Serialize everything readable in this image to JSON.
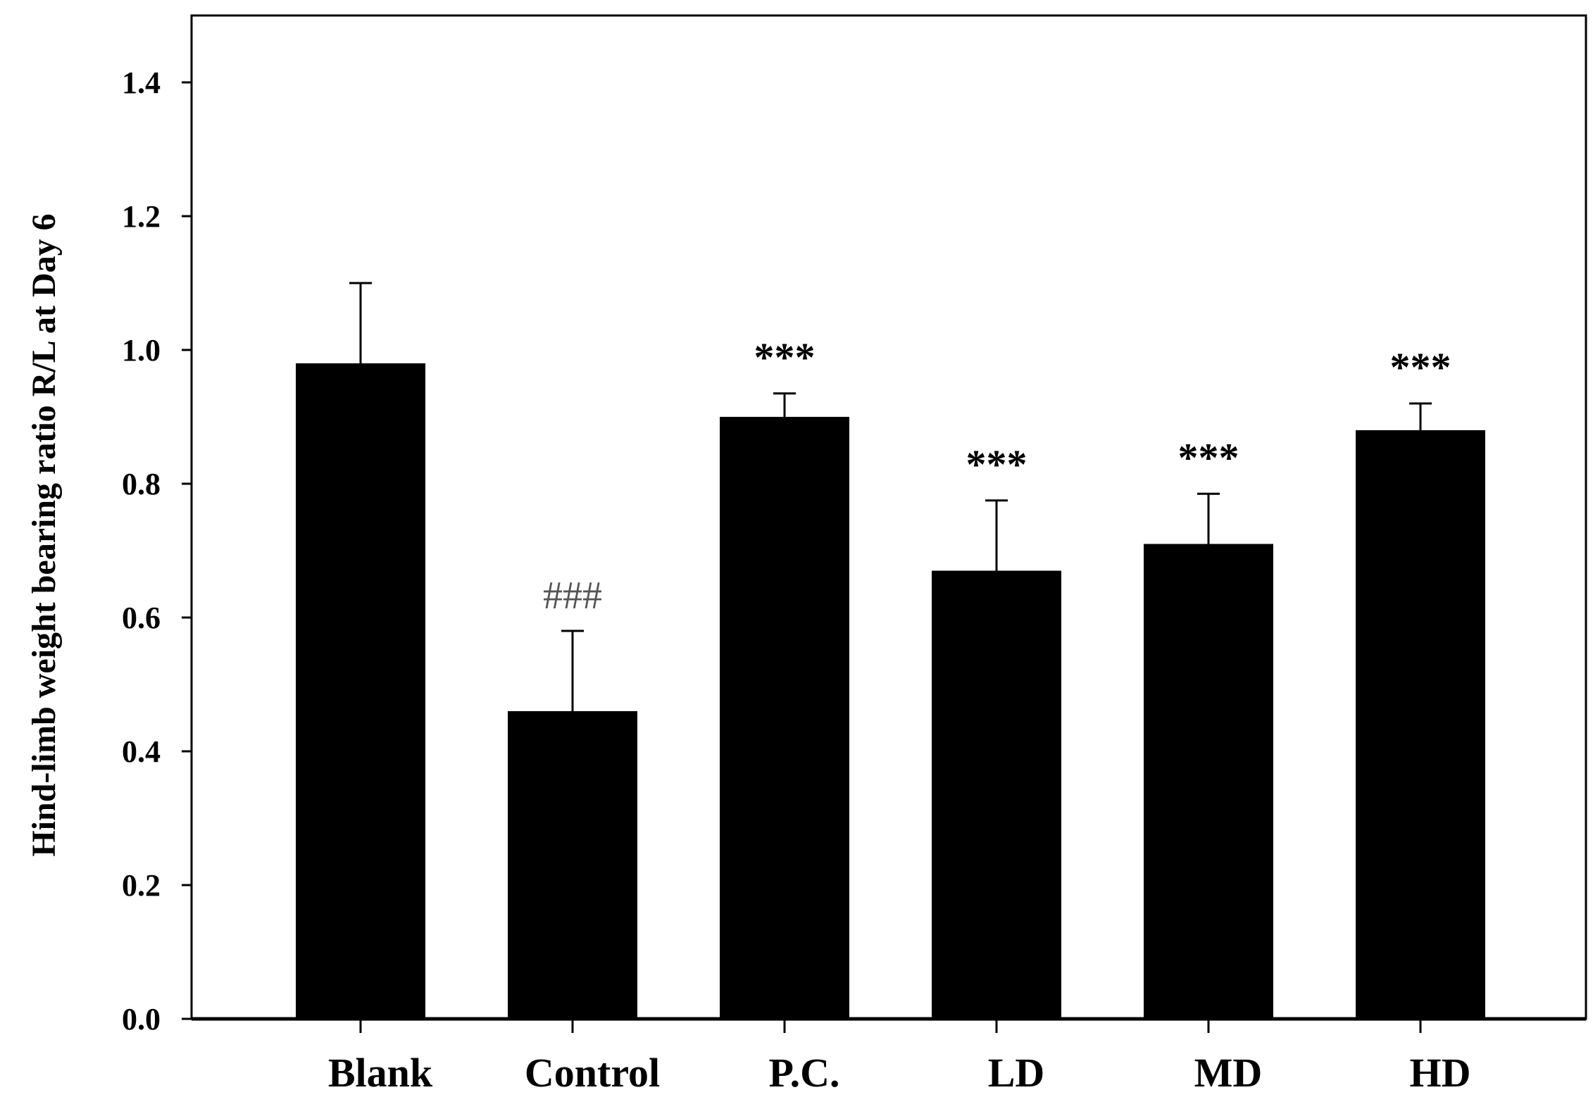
{
  "chart_data": {
    "type": "bar",
    "title": "",
    "xlabel": "",
    "ylabel": "Hind-limb weight bearing ratio R/L at Day 6",
    "ylim": [
      0,
      1.5
    ],
    "yticks": [
      0.0,
      0.2,
      0.4,
      0.6,
      0.8,
      1.0,
      1.2,
      1.4
    ],
    "ytick_labels": [
      "0.0",
      "0.2",
      "0.4",
      "0.6",
      "0.8",
      "1.0",
      "1.2",
      "1.4"
    ],
    "categories": [
      "Blank",
      "Control",
      "P.C.",
      "LD",
      "MD",
      "HD"
    ],
    "values": [
      0.98,
      0.46,
      0.9,
      0.67,
      0.71,
      0.88
    ],
    "errors": [
      0.12,
      0.12,
      0.035,
      0.105,
      0.075,
      0.04
    ],
    "annotations": [
      "",
      "###",
      "***",
      "***",
      "***",
      "***"
    ],
    "bar_color": "#000000",
    "grid": false,
    "legend": "none"
  }
}
